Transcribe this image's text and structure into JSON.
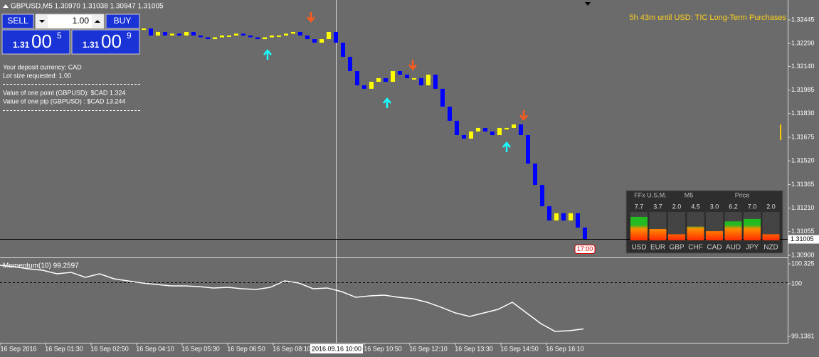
{
  "header": {
    "symbol_line": "GBPUSD,M5  1.30970 1.31038 1.30947 1.31005"
  },
  "trade_panel": {
    "sell": "SELL",
    "buy": "BUY",
    "lot": "1.00",
    "sell_price": [
      "1.31",
      "00",
      "5"
    ],
    "buy_price": [
      "1.31",
      "00",
      "9"
    ]
  },
  "info": [
    "Your deposit currency: CAD",
    "Lot size requested: 1.00",
    "Value of one point (GBPUSD):  $CAD 1.324",
    "Value of one pip    (GBPUSD) : $CAD 13.244"
  ],
  "news": "5h 43m until USD: TIC Long-Term Purchases",
  "current_time_label": "17:00",
  "cursor_time": "2016.09.16 10:00",
  "time_labels": [
    "16 Sep 2016",
    "16 Sep 01:30",
    "16 Sep 02:50",
    "16 Sep 04:10",
    "16 Sep 05:30",
    "16 Sep 06:50",
    "16 Sep 08:10",
    "16 Sep 10:50",
    "16 Sep 12:10",
    "16 Sep 13:30",
    "16 Sep 14:50",
    "16 Sep 16:10"
  ],
  "ffx": {
    "headers": [
      "FFx U.S.M.",
      "M5",
      "Price"
    ],
    "currencies": [
      "USD",
      "EUR",
      "GBP",
      "CHF",
      "CAD",
      "AUD",
      "JPY",
      "NZD"
    ],
    "values": [
      7.7,
      3.7,
      2.0,
      4.5,
      3.0,
      6.2,
      7.0,
      2.0
    ],
    "value_labels": [
      "7.7",
      "3.7",
      "2.0",
      "4.5",
      "3.0",
      "6.2",
      "7.0",
      "2.0"
    ]
  },
  "chart_data": [
    {
      "type": "candle",
      "current_price": 1.31005,
      "up_color": "#ffff00",
      "down_color": "#0000ff",
      "values": [
        1.32389,
        1.32343,
        1.32366,
        1.32343,
        1.32355,
        1.32343,
        1.32366,
        1.32343,
        1.32331,
        1.32319,
        1.32331,
        1.32343,
        1.32343,
        1.32355,
        1.32343,
        1.32331,
        1.32319,
        1.32331,
        1.32343,
        1.32343,
        1.32355,
        1.32366,
        1.32343,
        1.32319,
        1.32296,
        1.32319,
        1.32366,
        1.32296,
        1.32203,
        1.32109,
        1.32016,
        1.31993,
        1.32039,
        1.32063,
        1.32039,
        1.32109,
        1.32086,
        1.32063,
        1.32063,
        1.32016,
        1.32086,
        1.31993,
        1.31876,
        1.31783,
        1.31689,
        1.31666,
        1.31713,
        1.31736,
        1.31713,
        1.31689,
        1.31736,
        1.31736,
        1.31759,
        1.31689,
        1.31502,
        1.31362,
        1.31222,
        1.31129,
        1.31176,
        1.31129,
        1.31176,
        1.31082,
        1.31005
      ],
      "ylim": [
        1.30886,
        1.32576
      ],
      "yticks": [
        1.32445,
        {
          "value": 1.3229,
          "label": "1.32290"
        },
        {
          "value": 1.3214,
          "label": "1.32140"
        },
        1.31985,
        {
          "value": 1.3183,
          "label": "1.31830"
        },
        1.31675,
        {
          "value": 1.3152,
          "label": "1.31520"
        },
        1.31365,
        {
          "value": 1.3121,
          "label": "1.31210"
        },
        1.31055,
        {
          "value": 1.309,
          "label": "1.30900"
        }
      ]
    },
    {
      "type": "line",
      "title": "Momentum(10) 99.2597",
      "color": "#ffffff",
      "values": [
        100.302,
        100.279,
        100.244,
        100.22,
        100.162,
        100.186,
        100.104,
        100.162,
        100.081,
        100.046,
        100.011,
        99.988,
        99.964,
        99.964,
        99.953,
        99.93,
        99.941,
        99.918,
        99.906,
        99.941,
        100.046,
        100.011,
        99.918,
        99.93,
        99.871,
        99.778,
        99.802,
        99.813,
        99.778,
        99.755,
        99.697,
        99.615,
        99.522,
        99.464,
        99.522,
        99.58,
        99.697,
        99.522,
        99.348,
        99.22,
        99.231,
        99.2597
      ],
      "ylim": [
        99.0334,
        100.395
      ],
      "yticks": [
        100.325,
        100,
        99.1381
      ]
    }
  ]
}
